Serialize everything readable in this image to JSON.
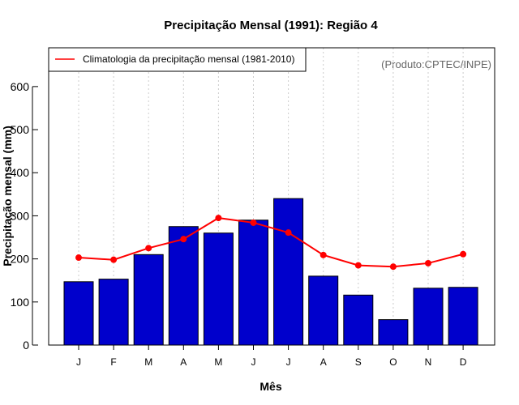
{
  "chart_data": {
    "type": "bar",
    "title": "Precipitação Mensal (1991): Região 4",
    "xlabel": "Mês",
    "ylabel": "Precipitação mensal (mm)",
    "ylim": [
      0,
      690
    ],
    "yticks": [
      0,
      100,
      200,
      300,
      400,
      500,
      600
    ],
    "categories": [
      "J",
      "F",
      "M",
      "A",
      "M",
      "J",
      "J",
      "A",
      "S",
      "O",
      "N",
      "D"
    ],
    "series": [
      {
        "name": "Precipitação mensal (1991)",
        "type": "bar",
        "color": "#0000cc",
        "values": [
          147,
          153,
          210,
          275,
          260,
          290,
          340,
          160,
          116,
          59,
          132,
          134
        ]
      },
      {
        "name": "Climatologia da precipitação mensal (1981-2010)",
        "type": "line",
        "color": "#ff0000",
        "values": [
          203,
          198,
          225,
          246,
          295,
          284,
          261,
          209,
          185,
          182,
          190,
          211
        ]
      }
    ],
    "grid": "vertical-dotted",
    "legend": {
      "position": "top-left",
      "entries": [
        "Climatologia da precipitação mensal (1981-2010)"
      ]
    },
    "annotation": "(Produto:CPTEC/INPE)"
  }
}
